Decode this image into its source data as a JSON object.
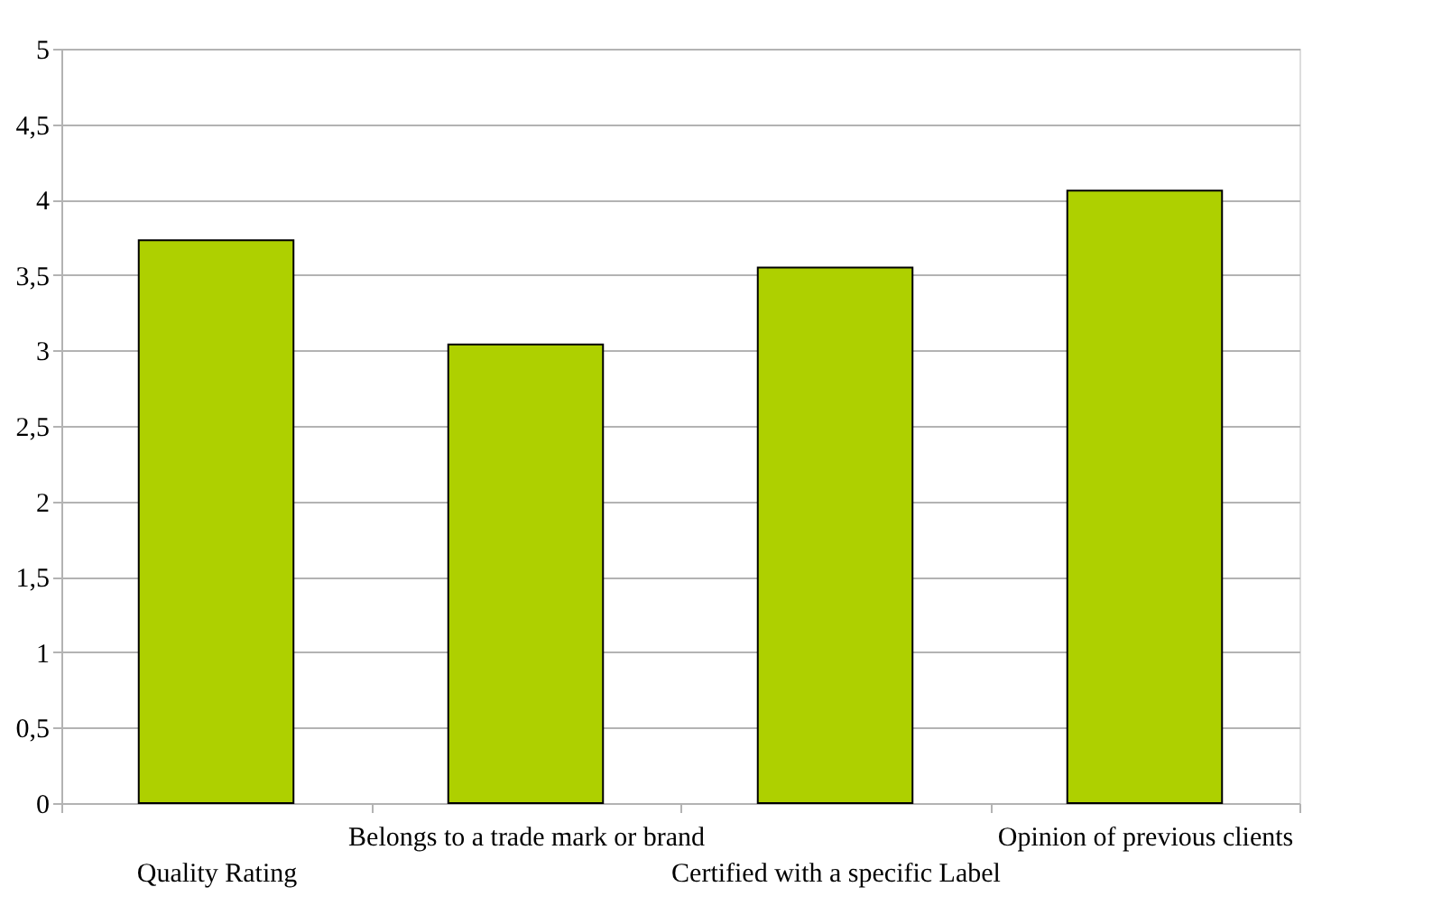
{
  "chart_data": {
    "type": "bar",
    "categories": [
      "Quality Rating",
      "Belongs to a trade mark or brand",
      "Certified with a specific Label",
      "Opinion of previous clients"
    ],
    "values": [
      3.73,
      3.04,
      3.55,
      4.06
    ],
    "color": "#aed000",
    "ylim": [
      0,
      5
    ],
    "yticks": [
      0,
      {
        "value": 0.5,
        "label": "0,5"
      },
      1,
      {
        "value": 1.5,
        "label": "1,5"
      },
      2,
      {
        "value": 2.5,
        "label": "2,5"
      },
      3,
      {
        "value": 3.5,
        "label": "3,5"
      },
      4,
      {
        "value": 4.5,
        "label": "4,5"
      },
      5
    ],
    "grid": "y"
  }
}
